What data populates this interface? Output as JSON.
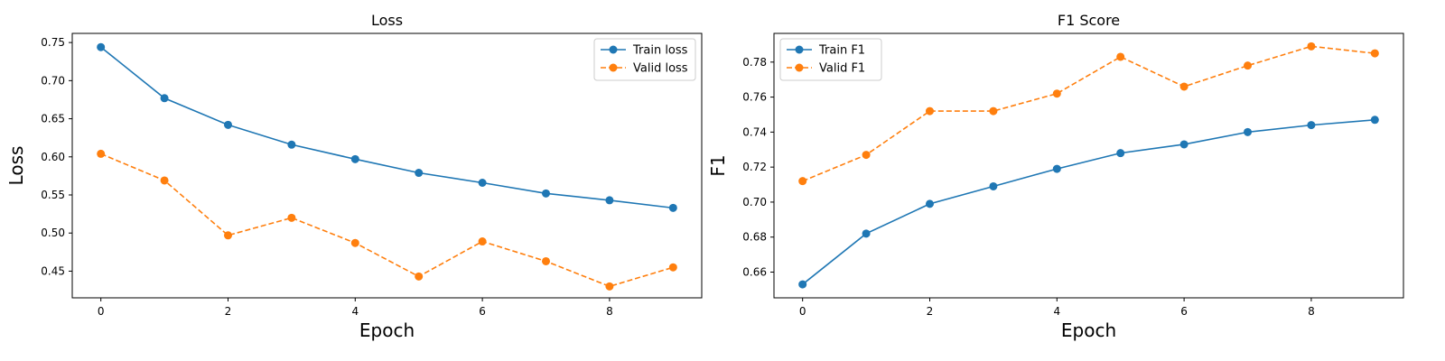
{
  "chart_data": [
    {
      "type": "line",
      "title": "Loss",
      "xlabel": "Epoch",
      "ylabel": "Loss",
      "x": [
        0,
        1,
        2,
        3,
        4,
        5,
        6,
        7,
        8,
        9
      ],
      "xlim": [
        -0.45,
        9.45
      ],
      "ylim": [
        0.415,
        0.762
      ],
      "xticks": [
        0,
        2,
        4,
        6,
        8
      ],
      "yticks": [
        0.45,
        0.5,
        0.55,
        0.6,
        0.65,
        0.7,
        0.75
      ],
      "xtick_labels": [
        "0",
        "2",
        "4",
        "6",
        "8"
      ],
      "ytick_labels": [
        "0.45",
        "0.50",
        "0.55",
        "0.60",
        "0.65",
        "0.70",
        "0.75"
      ],
      "grid": false,
      "legend": "top-right",
      "series": [
        {
          "name": "Train loss",
          "color": "#1f77b4",
          "linestyle": "solid",
          "marker": "circle",
          "values": [
            0.744,
            0.677,
            0.642,
            0.616,
            0.597,
            0.579,
            0.566,
            0.552,
            0.543,
            0.533
          ]
        },
        {
          "name": "Valid loss",
          "color": "#ff7f0e",
          "linestyle": "dashed",
          "marker": "circle",
          "values": [
            0.604,
            0.569,
            0.497,
            0.52,
            0.487,
            0.443,
            0.489,
            0.463,
            0.43,
            0.455
          ]
        }
      ]
    },
    {
      "type": "line",
      "title": "F1 Score",
      "xlabel": "Epoch",
      "ylabel": "F1",
      "x": [
        0,
        1,
        2,
        3,
        4,
        5,
        6,
        7,
        8,
        9
      ],
      "xlim": [
        -0.45,
        9.45
      ],
      "ylim": [
        0.6453,
        0.7964
      ],
      "xticks": [
        0,
        2,
        4,
        6,
        8
      ],
      "yticks": [
        0.66,
        0.68,
        0.7,
        0.72,
        0.74,
        0.76,
        0.78
      ],
      "xtick_labels": [
        "0",
        "2",
        "4",
        "6",
        "8"
      ],
      "ytick_labels": [
        "0.66",
        "0.68",
        "0.70",
        "0.72",
        "0.74",
        "0.76",
        "0.78"
      ],
      "grid": false,
      "legend": "top-left",
      "series": [
        {
          "name": "Train F1",
          "color": "#1f77b4",
          "linestyle": "solid",
          "marker": "circle",
          "values": [
            0.653,
            0.682,
            0.699,
            0.709,
            0.719,
            0.728,
            0.733,
            0.74,
            0.744,
            0.747
          ]
        },
        {
          "name": "Valid F1",
          "color": "#ff7f0e",
          "linestyle": "dashed",
          "marker": "circle",
          "values": [
            0.712,
            0.727,
            0.752,
            0.752,
            0.762,
            0.783,
            0.766,
            0.778,
            0.789,
            0.785
          ]
        }
      ]
    }
  ]
}
